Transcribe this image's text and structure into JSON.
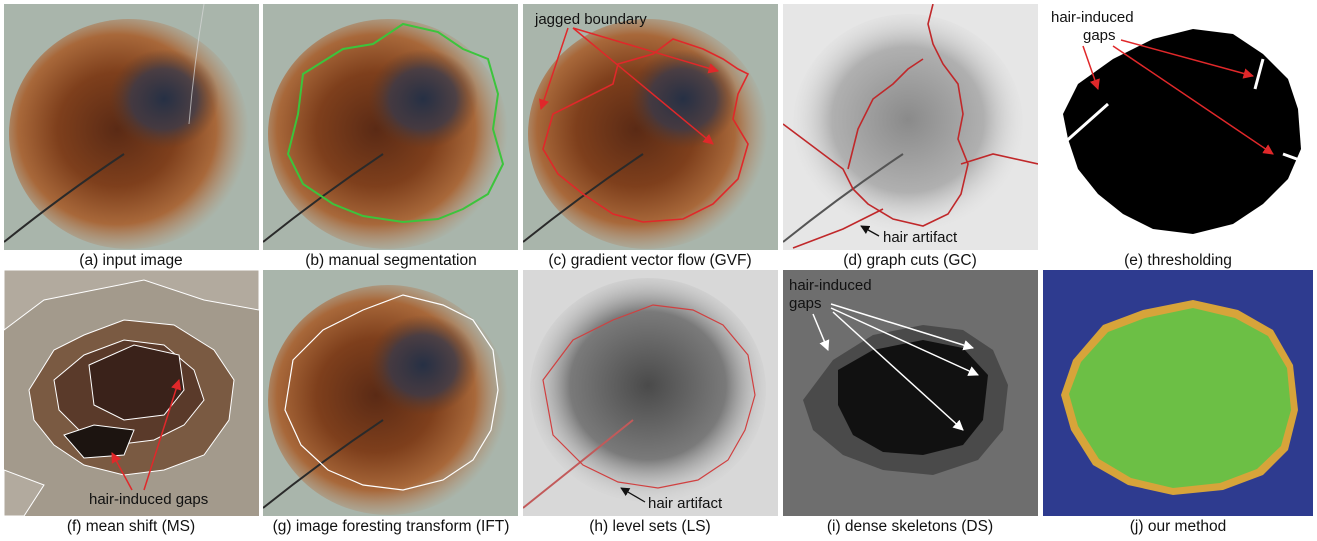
{
  "figure": {
    "panels": [
      {
        "caption": "(a) input image"
      },
      {
        "caption": "(b) manual segmentation"
      },
      {
        "caption": "(c) gradient vector flow (GVF)",
        "annotation": "jagged boundary"
      },
      {
        "caption": "(d) graph cuts (GC)",
        "annotation": "hair artifact"
      },
      {
        "caption": "(e) thresholding",
        "annotation_line1": "hair-induced",
        "annotation_line2": "gaps"
      },
      {
        "caption": "(f) mean shift (MS)",
        "annotation": "hair-induced gaps"
      },
      {
        "caption": "(g) image foresting transform (IFT)"
      },
      {
        "caption": "(h) level sets (LS)",
        "annotation": "hair artifact"
      },
      {
        "caption": "(i) dense skeletons (DS)",
        "annotation_line1": "hair-induced",
        "annotation_line2": "gaps"
      },
      {
        "caption": "(j) our method"
      }
    ],
    "colors": {
      "skin": "#a9b5ab",
      "lesion": "#8a4a22",
      "lesion_core": "#2b3248",
      "manual_contour": "#3cc43c",
      "arrow_red": "#e0282a",
      "background_blue": "#2e3b8f",
      "method_green": "#6cbf45"
    }
  }
}
